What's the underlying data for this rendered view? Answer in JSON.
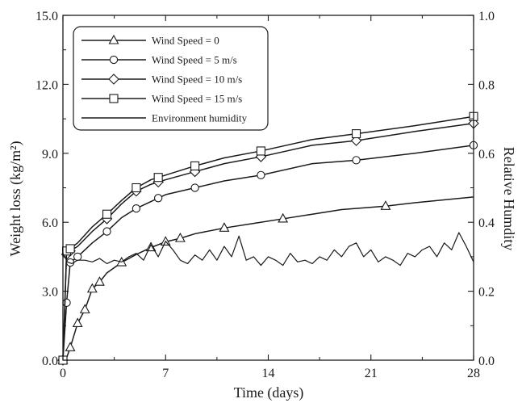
{
  "chart_data": {
    "type": "line",
    "xlabel": "Time (days)",
    "ylabel": "Weight loss (kg/m²)",
    "y2label": "Relative Humdity",
    "xlim": [
      0,
      28
    ],
    "ylim": [
      0,
      15
    ],
    "y2lim": [
      0,
      1
    ],
    "xticks": [
      "0",
      "7",
      "14",
      "21",
      "28"
    ],
    "yticks": [
      "0.0",
      "3.0",
      "6.0",
      "9.0",
      "12.0",
      "15.0"
    ],
    "y2ticks": [
      "0.0",
      "0.2",
      "0.4",
      "0.6",
      "0.8",
      "1.0"
    ],
    "grid": false,
    "legend_position": "top-left",
    "series": [
      {
        "name": "Wind Speed = 0",
        "marker": "triangle",
        "x": [
          0,
          0.25,
          0.5,
          1.0,
          1.5,
          2.0,
          2.5,
          3.0,
          4.0,
          5.0,
          6.0,
          7.0,
          8.0,
          9.0,
          11.0,
          13.0,
          15.0,
          17.0,
          19.0,
          22.0,
          24.0,
          28.0
        ],
        "y": [
          0.0,
          0.1,
          0.55,
          1.6,
          2.2,
          3.1,
          3.4,
          3.8,
          4.25,
          4.6,
          4.9,
          5.15,
          5.3,
          5.5,
          5.75,
          5.95,
          6.15,
          6.35,
          6.55,
          6.7,
          6.85,
          7.1
        ],
        "marked_x": [
          0,
          0.5,
          1.0,
          1.5,
          2.0,
          2.5,
          4.0,
          6.0,
          7.0,
          8.0,
          11.0,
          15.0,
          22.0
        ]
      },
      {
        "name": "Wind Speed = 5 m/s",
        "marker": "circle",
        "x": [
          0,
          0.25,
          0.5,
          1.0,
          2.0,
          3.0,
          4.0,
          5.0,
          6.0,
          7.0,
          9.0,
          11.0,
          13.5,
          17.0,
          20.0,
          24.0,
          28.0
        ],
        "y": [
          0.0,
          2.5,
          4.25,
          4.5,
          5.1,
          5.6,
          6.2,
          6.6,
          6.9,
          7.2,
          7.5,
          7.8,
          8.05,
          8.55,
          8.7,
          9.0,
          9.35
        ],
        "marked_x": [
          0,
          0.25,
          0.5,
          1.0,
          3.0,
          5.0,
          6.5,
          9.0,
          13.5,
          20.0,
          28.0
        ]
      },
      {
        "name": "Wind Speed = 10 m/s",
        "marker": "diamond",
        "x": [
          0,
          0.25,
          0.5,
          1.0,
          2.0,
          3.0,
          4.0,
          5.0,
          6.0,
          7.0,
          9.0,
          11.0,
          13.5,
          17.0,
          20.0,
          24.0,
          28.0
        ],
        "y": [
          0.0,
          4.6,
          4.75,
          4.95,
          5.6,
          6.15,
          6.8,
          7.35,
          7.65,
          7.85,
          8.2,
          8.55,
          8.85,
          9.35,
          9.55,
          9.95,
          10.3
        ],
        "marked_x": [
          0,
          0.25,
          0.5,
          3.0,
          5.0,
          6.5,
          9.0,
          13.5,
          20.0,
          28.0
        ]
      },
      {
        "name": "Wind Speed = 15 m/s",
        "marker": "square",
        "x": [
          0,
          0.25,
          0.5,
          1.0,
          2.0,
          3.0,
          4.0,
          5.0,
          6.0,
          7.0,
          9.0,
          11.0,
          13.5,
          17.0,
          20.0,
          24.0,
          28.0
        ],
        "y": [
          0.0,
          4.75,
          4.85,
          5.1,
          5.8,
          6.35,
          6.95,
          7.5,
          7.85,
          8.05,
          8.45,
          8.8,
          9.1,
          9.6,
          9.85,
          10.2,
          10.6
        ],
        "marked_x": [
          0,
          0.25,
          0.5,
          3.0,
          5.0,
          6.5,
          9.0,
          13.5,
          20.0,
          28.0
        ]
      },
      {
        "name": "Environment humidity",
        "marker": "none",
        "axis": "right",
        "x": [
          0,
          0.3,
          0.6,
          1,
          1.5,
          2,
          2.5,
          3,
          3.5,
          4,
          4.5,
          5,
          5.5,
          6,
          6.5,
          7,
          7.5,
          8,
          8.5,
          9,
          9.5,
          10,
          10.5,
          11,
          11.5,
          12,
          12.5,
          13,
          13.5,
          14,
          14.5,
          15,
          15.5,
          16,
          16.5,
          17,
          17.5,
          18,
          18.5,
          19,
          19.5,
          20,
          20.5,
          21,
          21.5,
          22,
          22.5,
          23,
          23.5,
          24,
          24.5,
          25,
          25.5,
          26,
          26.5,
          27,
          27.5,
          28
        ],
        "y": [
          0.31,
          0.285,
          0.28,
          0.29,
          0.29,
          0.285,
          0.295,
          0.28,
          0.29,
          0.285,
          0.3,
          0.31,
          0.29,
          0.335,
          0.3,
          0.345,
          0.32,
          0.29,
          0.28,
          0.305,
          0.29,
          0.32,
          0.29,
          0.33,
          0.3,
          0.36,
          0.29,
          0.3,
          0.275,
          0.3,
          0.29,
          0.275,
          0.31,
          0.285,
          0.29,
          0.28,
          0.3,
          0.29,
          0.32,
          0.3,
          0.33,
          0.34,
          0.3,
          0.32,
          0.285,
          0.3,
          0.29,
          0.275,
          0.31,
          0.3,
          0.32,
          0.33,
          0.3,
          0.34,
          0.32,
          0.37,
          0.33,
          0.285
        ]
      }
    ]
  }
}
